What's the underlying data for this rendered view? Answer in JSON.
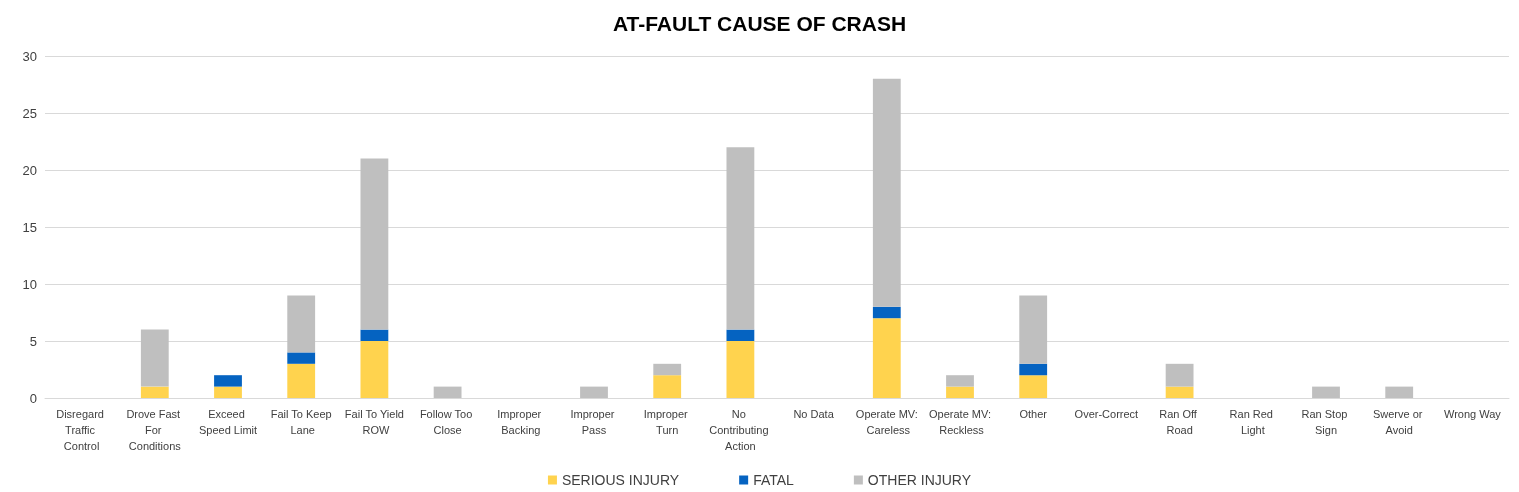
{
  "chart_data": {
    "type": "bar",
    "title": "AT-FAULT CAUSE OF CRASH",
    "stacked": true,
    "categories": [
      "Disregard Traffic Control",
      "Drove Fast For Conditions",
      "Exceed Speed Limit",
      "Fail To Keep Lane",
      "Fail To Yield ROW",
      "Follow Too Close",
      "Improper Backing",
      "Improper Pass",
      "Improper Turn",
      "No Contributing Action",
      "No Data",
      "Operate MV: Careless",
      "Operate MV: Reckless",
      "Other",
      "Over-Correct",
      "Ran Off Road",
      "Ran Red Light",
      "Ran Stop Sign",
      "Swerve or Avoid",
      "Wrong Way"
    ],
    "series": [
      {
        "name": "SERIOUS INJURY",
        "color": "#ffd34e",
        "values": [
          0,
          1,
          1,
          3,
          5,
          0,
          0,
          0,
          2,
          5,
          0,
          7,
          1,
          2,
          0,
          1,
          0,
          0,
          0,
          0
        ]
      },
      {
        "name": "FATAL",
        "color": "#0563c1",
        "values": [
          0,
          0,
          1,
          1,
          1,
          0,
          0,
          0,
          0,
          1,
          0,
          1,
          0,
          1,
          0,
          0,
          0,
          0,
          0,
          0
        ]
      },
      {
        "name": "OTHER INJURY",
        "color": "#bfbfbf",
        "values": [
          0,
          5,
          0,
          5,
          15,
          1,
          0,
          1,
          1,
          16,
          0,
          20,
          1,
          6,
          0,
          2,
          0,
          1,
          1,
          0
        ]
      }
    ],
    "ylim": [
      0,
      30
    ],
    "yticks": [
      0,
      5,
      10,
      15,
      20,
      25,
      30
    ],
    "grid": "y",
    "legend": "bottom"
  }
}
